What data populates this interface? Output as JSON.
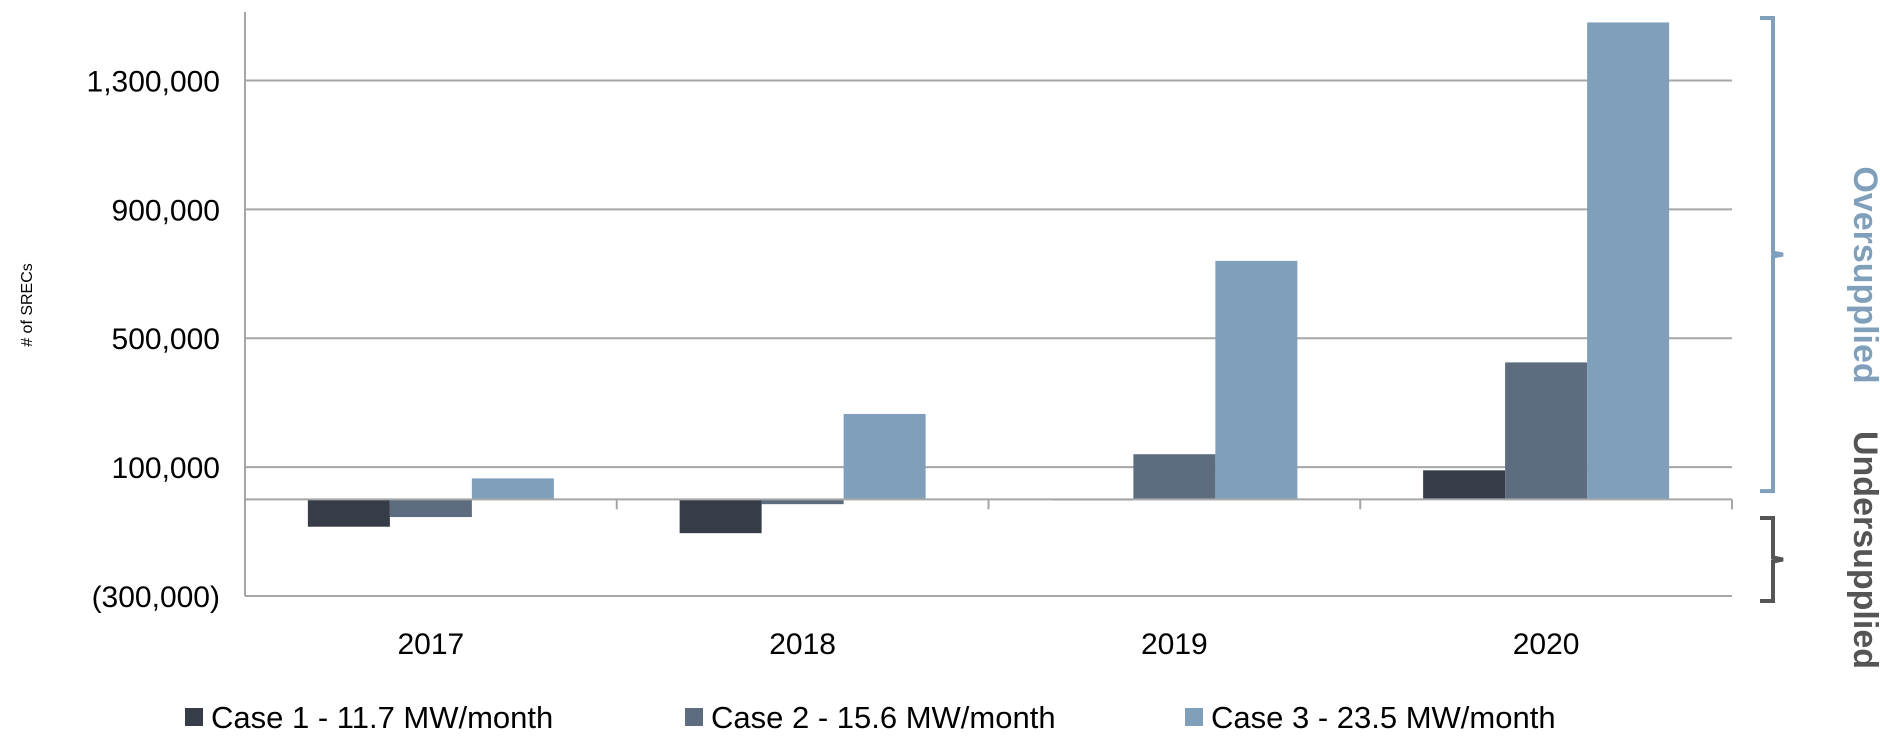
{
  "chart_data": {
    "type": "bar",
    "ylabel": "# of SRECs",
    "categories": [
      "2017",
      "2018",
      "2019",
      "2020"
    ],
    "y_ticks": [
      -300000,
      100000,
      500000,
      900000,
      1300000
    ],
    "y_tick_labels": [
      "(300,000)",
      "100,000",
      "500,000",
      "900,000",
      "1,300,000"
    ],
    "ylim": [
      -300000,
      1500000
    ],
    "grid": true,
    "legend_position": "bottom",
    "series": [
      {
        "name": "Case 1 - 11.7 MW/month",
        "color": "#363d48",
        "values": [
          -85000,
          -105000,
          -2000,
          90000
        ]
      },
      {
        "name": "Case 2 - 15.6 MW/month",
        "color": "#5e6c80",
        "values": [
          -55000,
          -15000,
          140000,
          425000
        ]
      },
      {
        "name": "Case 3 - 23.5 MW/month",
        "color": "#7f9fbb",
        "values": [
          65000,
          265000,
          740000,
          1480000
        ]
      }
    ],
    "annotations": [
      {
        "text": "Oversupplied",
        "color": "#7f9fbb"
      },
      {
        "text": "Undersupplied",
        "color": "#555555"
      }
    ]
  }
}
